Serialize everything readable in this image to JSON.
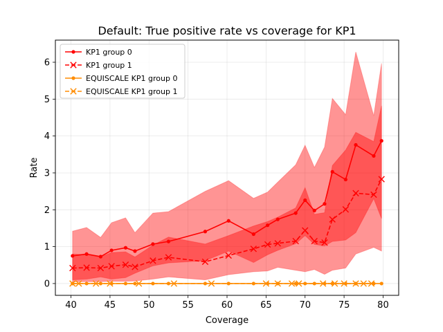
{
  "chart_data": {
    "type": "line",
    "title": "Default: True positive rate vs coverage for KP1",
    "xlabel": "Coverage",
    "ylabel": "Rate",
    "xlim": [
      38.0,
      82.0
    ],
    "ylim": [
      -0.32,
      6.6
    ],
    "xticks": [
      40,
      45,
      50,
      55,
      60,
      65,
      70,
      75,
      80
    ],
    "yticks": [
      0,
      1,
      2,
      3,
      4,
      5,
      6
    ],
    "grid": true,
    "legend_position": "top-left",
    "series": [
      {
        "name": "KP1 group 0",
        "color": "#ff0000",
        "linestyle": "solid",
        "marker": "dot",
        "x": [
          40.2,
          42.0,
          43.8,
          45.2,
          47.0,
          48.2,
          50.5,
          52.5,
          57.2,
          60.2,
          63.4,
          65.2,
          66.5,
          68.8,
          70.0,
          71.2,
          72.5,
          73.5,
          75.2,
          76.5,
          78.8,
          79.8
        ],
        "y": [
          0.75,
          0.8,
          0.73,
          0.9,
          0.97,
          0.88,
          1.07,
          1.14,
          1.41,
          1.7,
          1.34,
          1.58,
          1.74,
          1.91,
          2.26,
          1.98,
          2.16,
          3.03,
          2.82,
          3.76,
          3.46,
          3.87
        ]
      },
      {
        "name": "KP1 group 1",
        "color": "#ff0000",
        "linestyle": "dashed",
        "marker": "x",
        "x": [
          40.2,
          42.0,
          43.8,
          45.2,
          47.0,
          48.2,
          50.5,
          52.5,
          57.2,
          60.2,
          63.4,
          65.2,
          66.5,
          68.8,
          70.0,
          71.2,
          72.5,
          73.5,
          75.2,
          76.5,
          78.8,
          79.8
        ],
        "y": [
          0.42,
          0.43,
          0.42,
          0.47,
          0.51,
          0.45,
          0.62,
          0.71,
          0.59,
          0.76,
          0.94,
          1.06,
          1.09,
          1.15,
          1.44,
          1.15,
          1.11,
          1.74,
          2.01,
          2.45,
          2.41,
          2.83
        ]
      },
      {
        "name": "EQUISCALE KP1 group 0",
        "color": "#ff8c00",
        "linestyle": "solid",
        "marker": "dot",
        "x": [
          40.2,
          42.0,
          43.8,
          45.2,
          47.0,
          48.2,
          50.5,
          52.5,
          57.2,
          60.2,
          63.4,
          65.2,
          66.5,
          68.8,
          70.0,
          71.2,
          72.5,
          73.5,
          75.2,
          76.5,
          78.8,
          79.8
        ],
        "y": [
          0,
          0,
          0,
          0,
          0,
          0,
          0,
          0,
          0,
          0,
          0,
          0,
          0,
          0,
          0,
          0,
          0,
          0,
          0,
          0,
          0,
          0
        ]
      },
      {
        "name": "EQUISCALE KP1 group 1",
        "color": "#ff8c00",
        "linestyle": "dashed",
        "marker": "x",
        "x": [
          40.2,
          41.0,
          43.2,
          45.0,
          48.7,
          53.2,
          58.0,
          65.0,
          66.5,
          68.3,
          69.2,
          72.3,
          73.8,
          75.0,
          76.5,
          77.5,
          78.5
        ],
        "y": [
          0,
          0,
          0,
          0,
          0,
          0,
          0,
          0,
          0,
          0,
          0,
          0,
          0,
          0,
          0,
          0,
          0
        ]
      }
    ],
    "bands": [
      {
        "series": "KP1 group 0",
        "color": "#ff0000",
        "opacity": 0.42,
        "x": [
          40.2,
          42.0,
          43.8,
          45.2,
          47.0,
          48.2,
          50.5,
          52.5,
          57.2,
          60.2,
          63.4,
          65.2,
          66.5,
          68.8,
          70.0,
          71.2,
          72.5,
          73.5,
          75.2,
          76.5,
          78.8,
          79.8
        ],
        "upper": [
          1.42,
          1.52,
          1.25,
          1.65,
          1.78,
          1.38,
          1.91,
          1.95,
          2.5,
          2.79,
          2.31,
          2.48,
          2.75,
          3.22,
          3.75,
          3.15,
          3.7,
          5.02,
          4.58,
          6.28,
          4.55,
          5.97
        ],
        "lower": [
          0.1,
          0.12,
          0.18,
          0.12,
          0.16,
          0.28,
          0.48,
          0.56,
          0.62,
          0.88,
          0.57,
          0.78,
          0.9,
          1.08,
          1.3,
          1.06,
          1.02,
          1.14,
          1.18,
          1.38,
          2.3,
          1.76
        ]
      },
      {
        "series": "KP1 group 1",
        "color": "#ff0000",
        "opacity": 0.42,
        "x": [
          40.2,
          42.0,
          43.8,
          45.2,
          47.0,
          48.2,
          50.5,
          52.5,
          57.2,
          60.2,
          63.4,
          65.2,
          66.5,
          68.8,
          70.0,
          71.2,
          72.5,
          73.5,
          75.2,
          76.5,
          78.8,
          79.8
        ],
        "upper": [
          0.8,
          0.78,
          0.72,
          0.84,
          0.86,
          0.72,
          1.04,
          1.26,
          1.07,
          1.3,
          1.56,
          1.68,
          1.8,
          2.05,
          2.6,
          1.88,
          1.92,
          3.2,
          3.62,
          4.1,
          3.85,
          4.82
        ],
        "lower": [
          0.05,
          0.05,
          0.05,
          0.06,
          0.06,
          0.07,
          0.12,
          0.18,
          0.1,
          0.24,
          0.32,
          0.34,
          0.44,
          0.36,
          0.32,
          0.38,
          0.25,
          0.36,
          0.42,
          0.8,
          0.98,
          0.88
        ]
      }
    ]
  }
}
